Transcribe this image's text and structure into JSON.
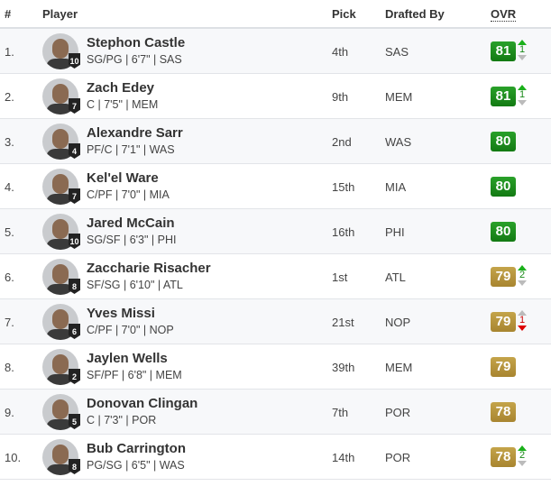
{
  "headers": {
    "rank": "#",
    "player": "Player",
    "pick": "Pick",
    "drafted_by": "Drafted By",
    "ovr": "OVR"
  },
  "colors": {
    "green": "#1e8e1e",
    "gold": "#b6953c",
    "up": "#1ab01a",
    "down": "#dd0000"
  },
  "rows": [
    {
      "rank": "1.",
      "name": "Stephon Castle",
      "info": "SG/PG | 6'7\" | SAS",
      "jersey": "10",
      "pick": "4th",
      "team": "SAS",
      "ovr": "81",
      "tier": "green",
      "change": "1",
      "dir": "up"
    },
    {
      "rank": "2.",
      "name": "Zach Edey",
      "info": "C | 7'5\" | MEM",
      "jersey": "7",
      "pick": "9th",
      "team": "MEM",
      "ovr": "81",
      "tier": "green",
      "change": "1",
      "dir": "up"
    },
    {
      "rank": "3.",
      "name": "Alexandre Sarr",
      "info": "PF/C | 7'1\" | WAS",
      "jersey": "4",
      "pick": "2nd",
      "team": "WAS",
      "ovr": "80",
      "tier": "green",
      "change": "",
      "dir": ""
    },
    {
      "rank": "4.",
      "name": "Kel'el Ware",
      "info": "C/PF | 7'0\" | MIA",
      "jersey": "7",
      "pick": "15th",
      "team": "MIA",
      "ovr": "80",
      "tier": "green",
      "change": "",
      "dir": ""
    },
    {
      "rank": "5.",
      "name": "Jared McCain",
      "info": "SG/SF | 6'3\" | PHI",
      "jersey": "10",
      "pick": "16th",
      "team": "PHI",
      "ovr": "80",
      "tier": "green",
      "change": "",
      "dir": ""
    },
    {
      "rank": "6.",
      "name": "Zaccharie Risacher",
      "info": "SF/SG | 6'10\" | ATL",
      "jersey": "8",
      "pick": "1st",
      "team": "ATL",
      "ovr": "79",
      "tier": "gold",
      "change": "2",
      "dir": "up"
    },
    {
      "rank": "7.",
      "name": "Yves Missi",
      "info": "C/PF | 7'0\" | NOP",
      "jersey": "6",
      "pick": "21st",
      "team": "NOP",
      "ovr": "79",
      "tier": "gold",
      "change": "1",
      "dir": "down"
    },
    {
      "rank": "8.",
      "name": "Jaylen Wells",
      "info": "SF/PF | 6'8\" | MEM",
      "jersey": "2",
      "pick": "39th",
      "team": "MEM",
      "ovr": "79",
      "tier": "gold",
      "change": "",
      "dir": ""
    },
    {
      "rank": "9.",
      "name": "Donovan Clingan",
      "info": "C | 7'3\" | POR",
      "jersey": "5",
      "pick": "7th",
      "team": "POR",
      "ovr": "78",
      "tier": "gold",
      "change": "",
      "dir": ""
    },
    {
      "rank": "10.",
      "name": "Bub Carrington",
      "info": "PG/SG | 6'5\" | WAS",
      "jersey": "8",
      "pick": "14th",
      "team": "POR",
      "ovr": "78",
      "tier": "gold",
      "change": "2",
      "dir": "up"
    }
  ]
}
